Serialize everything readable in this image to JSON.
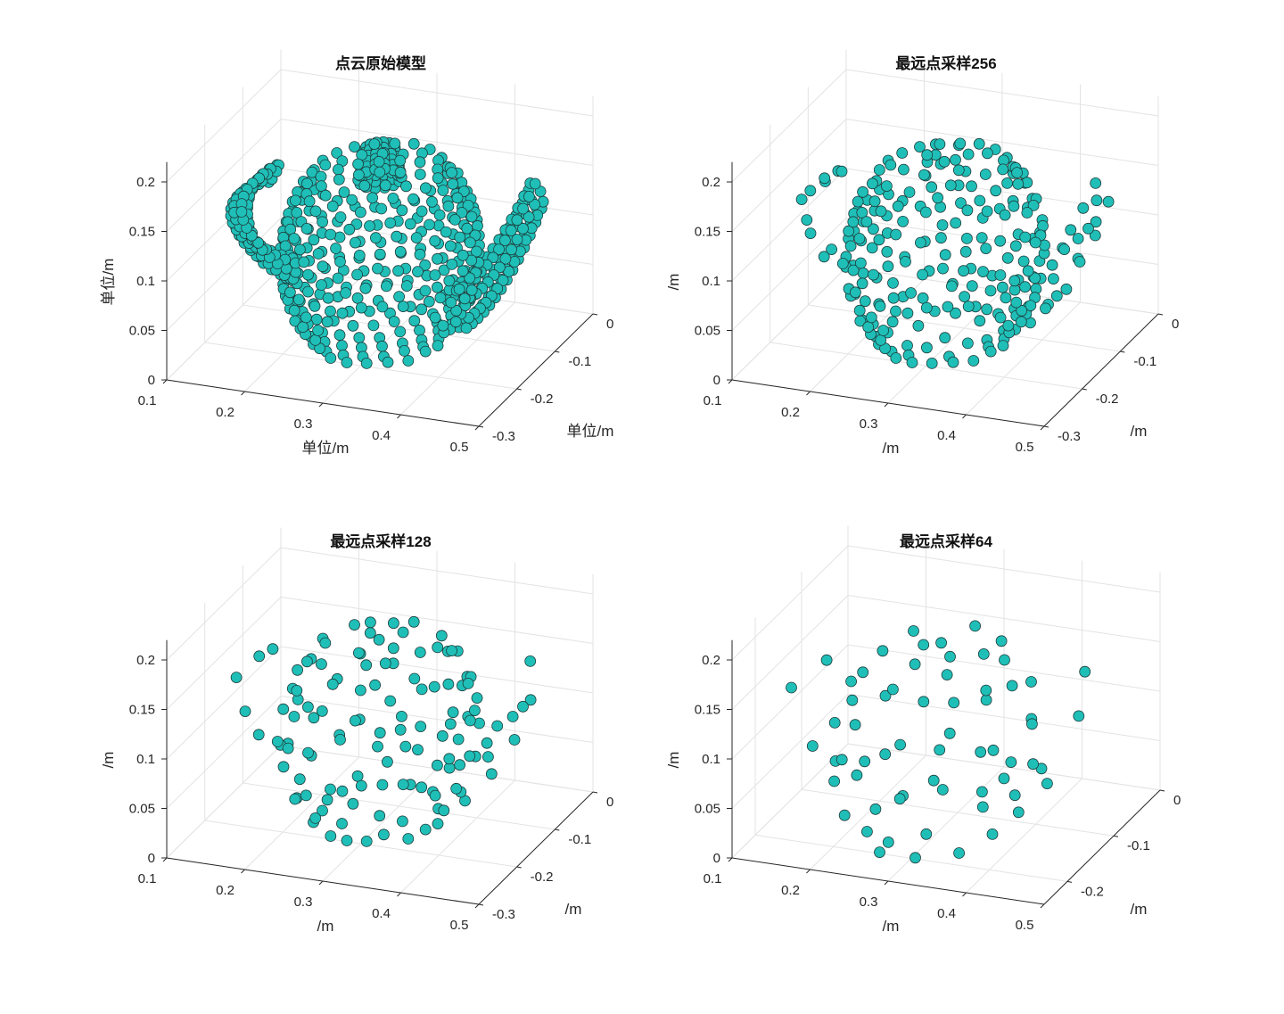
{
  "chart_data": [
    {
      "type": "scatter3d",
      "title": "点云原始模型",
      "xlabel": "单位/m",
      "ylabel": "单位/m",
      "zlabel": "单位/m",
      "xlim": [
        0.1,
        0.5
      ],
      "ylim": [
        -0.3,
        0
      ],
      "zlim": [
        0,
        0.22
      ],
      "xticks": [
        "0.1",
        "0.2",
        "0.3",
        "0.4",
        "0.5"
      ],
      "yticks": [
        "0",
        "-0.1",
        "-0.2",
        "-0.3"
      ],
      "zticks": [
        "0",
        "0.05",
        "0.1",
        "0.15",
        "0.2"
      ],
      "view": {
        "azimuth": -37.5,
        "elevation": 30
      },
      "grid": true,
      "sampled_points": null
    },
    {
      "type": "scatter3d",
      "title": "最远点采样256",
      "xlabel": "/m",
      "ylabel": "/m",
      "zlabel": "/m",
      "xlim": [
        0.1,
        0.5
      ],
      "ylim": [
        -0.3,
        0
      ],
      "zlim": [
        0,
        0.22
      ],
      "xticks": [
        "0.1",
        "0.2",
        "0.3",
        "0.4",
        "0.5"
      ],
      "yticks": [
        "0",
        "-0.1",
        "-0.2",
        "-0.3"
      ],
      "zticks": [
        "0",
        "0.05",
        "0.1",
        "0.15",
        "0.2"
      ],
      "view": {
        "azimuth": -37.5,
        "elevation": 30
      },
      "grid": true,
      "sampled_points": 256
    },
    {
      "type": "scatter3d",
      "title": "最远点采样128",
      "xlabel": "/m",
      "ylabel": "/m",
      "zlabel": "/m",
      "xlim": [
        0.1,
        0.5
      ],
      "ylim": [
        -0.3,
        0
      ],
      "zlim": [
        0,
        0.22
      ],
      "xticks": [
        "0.1",
        "0.2",
        "0.3",
        "0.4",
        "0.5"
      ],
      "yticks": [
        "0",
        "-0.1",
        "-0.2",
        "-0.3"
      ],
      "zticks": [
        "0",
        "0.05",
        "0.1",
        "0.15",
        "0.2"
      ],
      "view": {
        "azimuth": -37.5,
        "elevation": 30
      },
      "grid": true,
      "sampled_points": 128
    },
    {
      "type": "scatter3d",
      "title": "最远点采样64",
      "xlabel": "/m",
      "ylabel": "/m",
      "zlabel": "/m",
      "xlim": [
        0.1,
        0.5
      ],
      "ylim": [
        -0.25,
        0
      ],
      "zlim": [
        0,
        0.22
      ],
      "xticks": [
        "0.1",
        "0.2",
        "0.3",
        "0.4",
        "0.5"
      ],
      "yticks": [
        "0",
        "-0.1",
        "-0.2"
      ],
      "zticks": [
        "0",
        "0.05",
        "0.1",
        "0.15",
        "0.2"
      ],
      "view": {
        "azimuth": -37.5,
        "elevation": 30
      },
      "grid": true,
      "sampled_points": 64
    }
  ],
  "colors": {
    "marker_fill": "#1fbfb8",
    "marker_edge": "#1d3b39",
    "grid": "#e3e3e3",
    "axis": "#262626"
  }
}
